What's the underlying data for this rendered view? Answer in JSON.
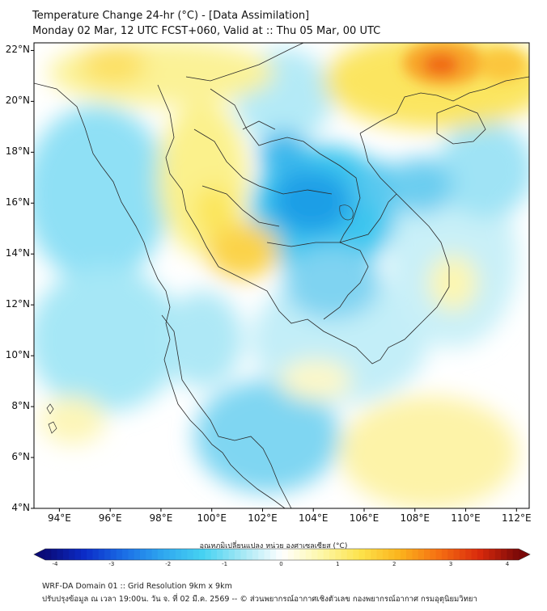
{
  "title": {
    "line1": "Temperature Change 24-hr (°C) - [Data Assimilation]",
    "line2": "Monday 02 Mar, 12 UTC FCST+060, Valid at :: Thu 05 Mar, 00 UTC"
  },
  "map": {
    "y_ticks": [
      "22°N",
      "20°N",
      "18°N",
      "16°N",
      "14°N",
      "12°N",
      "10°N",
      "8°N",
      "6°N",
      "4°N"
    ],
    "x_ticks": [
      "94°E",
      "96°E",
      "98°E",
      "100°E",
      "102°E",
      "104°E",
      "106°E",
      "108°E",
      "110°E",
      "112°E"
    ],
    "lat_range": [
      4,
      22.3
    ],
    "lon_range": [
      93,
      112.5
    ],
    "colors": {
      "border": "#2a2a2a",
      "frame": "#000000",
      "background": "#ffffff"
    }
  },
  "colorbar": {
    "label": "อุณหภูมิเปลี่ยนแปลง หน่วย องศาเซลเซียส (°C)",
    "ticks": [
      "-4",
      "-3",
      "-2",
      "-1",
      "0",
      "1",
      "2",
      "3",
      "4"
    ],
    "range": [
      -4,
      4
    ],
    "stops": [
      "#0a0a78",
      "#0b2cc8",
      "#1a6ee6",
      "#2fa8ef",
      "#46d2f2",
      "#a5e8f5",
      "#ffffff",
      "#fdf7a8",
      "#fde24a",
      "#fbb21c",
      "#f56d12",
      "#d92a0c",
      "#7a0808"
    ]
  },
  "footer": {
    "line1": "WRF-DA Domain 01 :: Grid Resolution 9km x 9km",
    "line2": "ปรับปรุงข้อมูล ณ เวลา 19:00น. วัน จ. ที่ 02 มี.ค. 2569 -- © ส่วนพยากรณ์อากาศเชิงตัวเลข กองพยากรณ์อากาศ กรมอุตุนิยมวิทยา"
  }
}
